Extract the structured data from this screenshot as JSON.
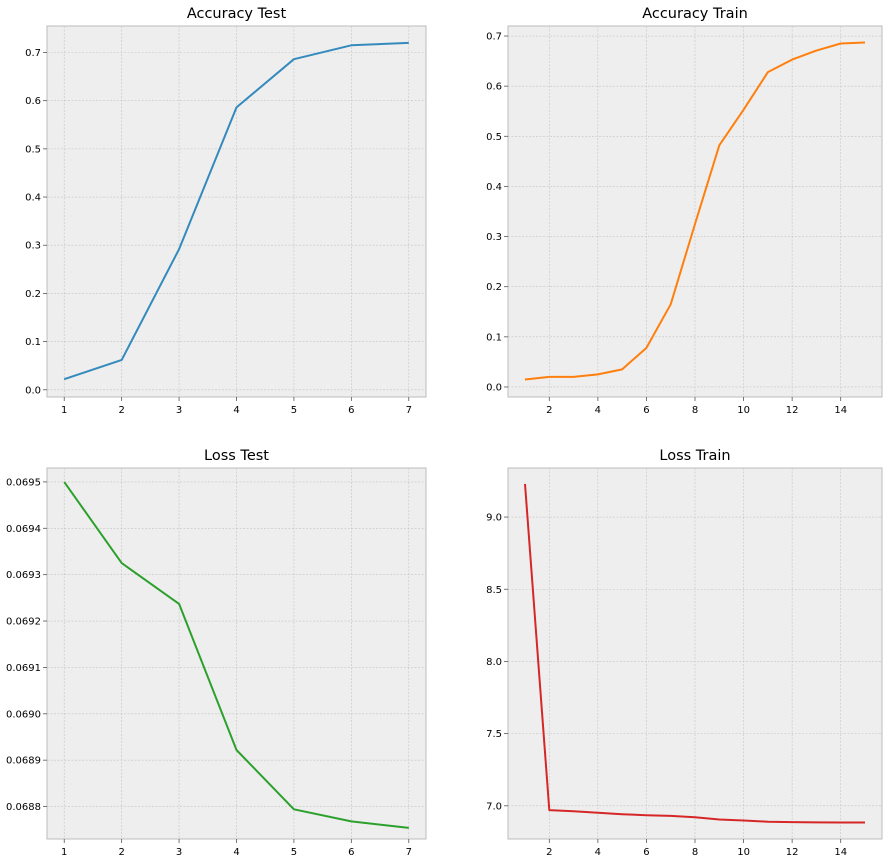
{
  "chart_data": [
    {
      "type": "line",
      "title": "Accuracy Test",
      "xlabel": "",
      "ylabel": "",
      "grid": true,
      "xlim": [
        0.7,
        7.3
      ],
      "ylim": [
        -0.015,
        0.755
      ],
      "xticks": [
        1,
        2,
        3,
        4,
        5,
        6,
        7
      ],
      "yticks": [
        0.0,
        0.1,
        0.2,
        0.3,
        0.4,
        0.5,
        0.6,
        0.7
      ],
      "ytick_decimals": 1,
      "series": [
        {
          "color": "#348abd",
          "x": [
            1,
            2,
            3,
            4,
            5,
            6,
            7
          ],
          "y": [
            0.022,
            0.062,
            0.292,
            0.586,
            0.686,
            0.715,
            0.72
          ]
        }
      ]
    },
    {
      "type": "line",
      "title": "Accuracy Train",
      "xlabel": "",
      "ylabel": "",
      "grid": true,
      "xlim": [
        0.3,
        15.7
      ],
      "ylim": [
        -0.02,
        0.72
      ],
      "xticks": [
        2,
        4,
        6,
        8,
        10,
        12,
        14
      ],
      "yticks": [
        0.0,
        0.1,
        0.2,
        0.3,
        0.4,
        0.5,
        0.6,
        0.7
      ],
      "ytick_decimals": 1,
      "series": [
        {
          "color": "#ff7f0e",
          "x": [
            1,
            2,
            3,
            4,
            5,
            6,
            7,
            8,
            9,
            10,
            11,
            12,
            13,
            14,
            15
          ],
          "y": [
            0.015,
            0.02,
            0.02,
            0.025,
            0.035,
            0.078,
            0.165,
            0.325,
            0.482,
            0.553,
            0.628,
            0.653,
            0.671,
            0.685,
            0.687
          ]
        }
      ]
    },
    {
      "type": "line",
      "title": "Loss Test",
      "xlabel": "",
      "ylabel": "",
      "grid": true,
      "xlim": [
        0.7,
        7.3
      ],
      "ylim": [
        0.06873,
        0.06953
      ],
      "xticks": [
        1,
        2,
        3,
        4,
        5,
        6,
        7
      ],
      "yticks": [
        0.0688,
        0.0689,
        0.069,
        0.0691,
        0.0692,
        0.0693,
        0.0694,
        0.0695
      ],
      "ytick_decimals": 4,
      "series": [
        {
          "color": "#2ca02c",
          "x": [
            1,
            2,
            3,
            4,
            5,
            6,
            7
          ],
          "y": [
            0.0695,
            0.069325,
            0.069237,
            0.068922,
            0.068794,
            0.068768,
            0.068754
          ]
        }
      ]
    },
    {
      "type": "line",
      "title": "Loss Train",
      "xlabel": "",
      "ylabel": "",
      "grid": true,
      "xlim": [
        0.3,
        15.7
      ],
      "ylim": [
        6.77,
        9.34
      ],
      "xticks": [
        2,
        4,
        6,
        8,
        10,
        12,
        14
      ],
      "yticks": [
        7.0,
        7.5,
        8.0,
        8.5,
        9.0
      ],
      "ytick_decimals": 1,
      "series": [
        {
          "color": "#d62728",
          "x": [
            1,
            2,
            3,
            4,
            5,
            6,
            7,
            8,
            9,
            10,
            11,
            12,
            13,
            14,
            15
          ],
          "y": [
            9.23,
            6.97,
            6.962,
            6.952,
            6.942,
            6.935,
            6.93,
            6.92,
            6.905,
            6.898,
            6.89,
            6.887,
            6.885,
            6.884,
            6.884
          ]
        }
      ]
    }
  ]
}
